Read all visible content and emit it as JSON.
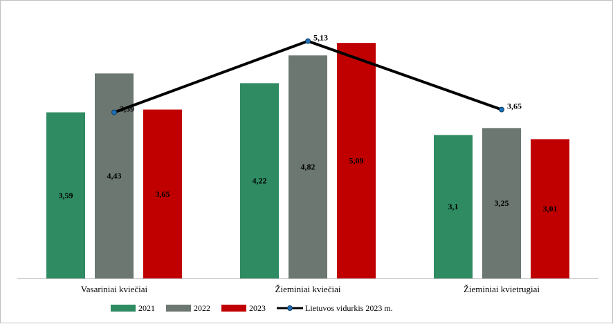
{
  "chart_data": {
    "type": "bar",
    "title": "",
    "xlabel": "",
    "ylabel": "",
    "ylim": [
      0,
      5.6
    ],
    "grid": false,
    "legend_position": "bottom",
    "categories": [
      "Vasariniai kviečiai",
      "Žieminiai kviečiai",
      "Žieminiai kvietrugiai"
    ],
    "series": [
      {
        "name": "2021",
        "color": "#2e8b62",
        "values": [
          3.59,
          4.22,
          3.1
        ],
        "labels": [
          "3,59",
          "4,22",
          "3,1"
        ]
      },
      {
        "name": "2022",
        "color": "#6b7770",
        "values": [
          4.43,
          4.82,
          3.25
        ],
        "labels": [
          "4,43",
          "4,82",
          "3,25"
        ]
      },
      {
        "name": "2023",
        "color": "#c00000",
        "values": [
          3.65,
          5.09,
          3.01
        ],
        "labels": [
          "3,65",
          "5,09",
          "3,01"
        ]
      }
    ],
    "line_series": {
      "name": "Lietuvos vidurkis 2023 m.",
      "color": "#000000",
      "marker_color": "#1f6fb4",
      "values": [
        3.59,
        5.13,
        3.65
      ],
      "labels": [
        "3,59",
        "5,13",
        "3,65"
      ]
    }
  }
}
